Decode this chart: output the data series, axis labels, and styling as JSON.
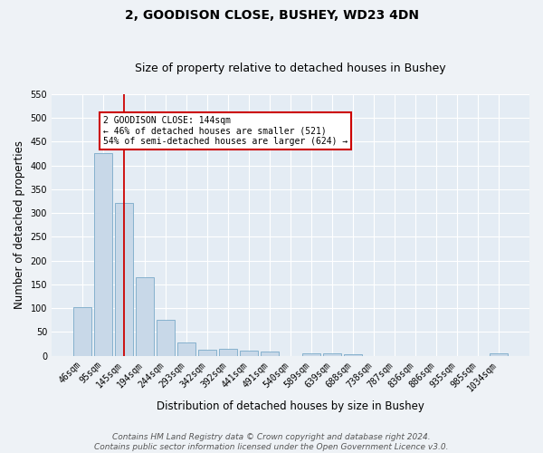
{
  "title": "2, GOODISON CLOSE, BUSHEY, WD23 4DN",
  "subtitle": "Size of property relative to detached houses in Bushey",
  "xlabel": "Distribution of detached houses by size in Bushey",
  "ylabel": "Number of detached properties",
  "categories": [
    "46sqm",
    "95sqm",
    "145sqm",
    "194sqm",
    "244sqm",
    "293sqm",
    "342sqm",
    "392sqm",
    "441sqm",
    "491sqm",
    "540sqm",
    "589sqm",
    "639sqm",
    "688sqm",
    "738sqm",
    "787sqm",
    "836sqm",
    "886sqm",
    "935sqm",
    "985sqm",
    "1034sqm"
  ],
  "values": [
    103,
    427,
    321,
    165,
    75,
    27,
    12,
    14,
    10,
    8,
    0,
    5,
    6,
    4,
    0,
    0,
    0,
    0,
    0,
    0,
    5
  ],
  "bar_color": "#c8d8e8",
  "bar_edge_color": "#7aaac8",
  "highlight_bar_index": 2,
  "highlight_color": "#cc0000",
  "annotation_text": "2 GOODISON CLOSE: 144sqm\n← 46% of detached houses are smaller (521)\n54% of semi-detached houses are larger (624) →",
  "annotation_box_color": "#ffffff",
  "annotation_box_edge_color": "#cc0000",
  "ylim": [
    0,
    550
  ],
  "yticks": [
    0,
    50,
    100,
    150,
    200,
    250,
    300,
    350,
    400,
    450,
    500,
    550
  ],
  "footer": "Contains HM Land Registry data © Crown copyright and database right 2024.\nContains public sector information licensed under the Open Government Licence v3.0.",
  "bg_color": "#eef2f6",
  "plot_bg_color": "#e4ecf4",
  "grid_color": "#ffffff",
  "title_fontsize": 10,
  "subtitle_fontsize": 9,
  "axis_label_fontsize": 8.5,
  "tick_fontsize": 7,
  "footer_fontsize": 6.5
}
